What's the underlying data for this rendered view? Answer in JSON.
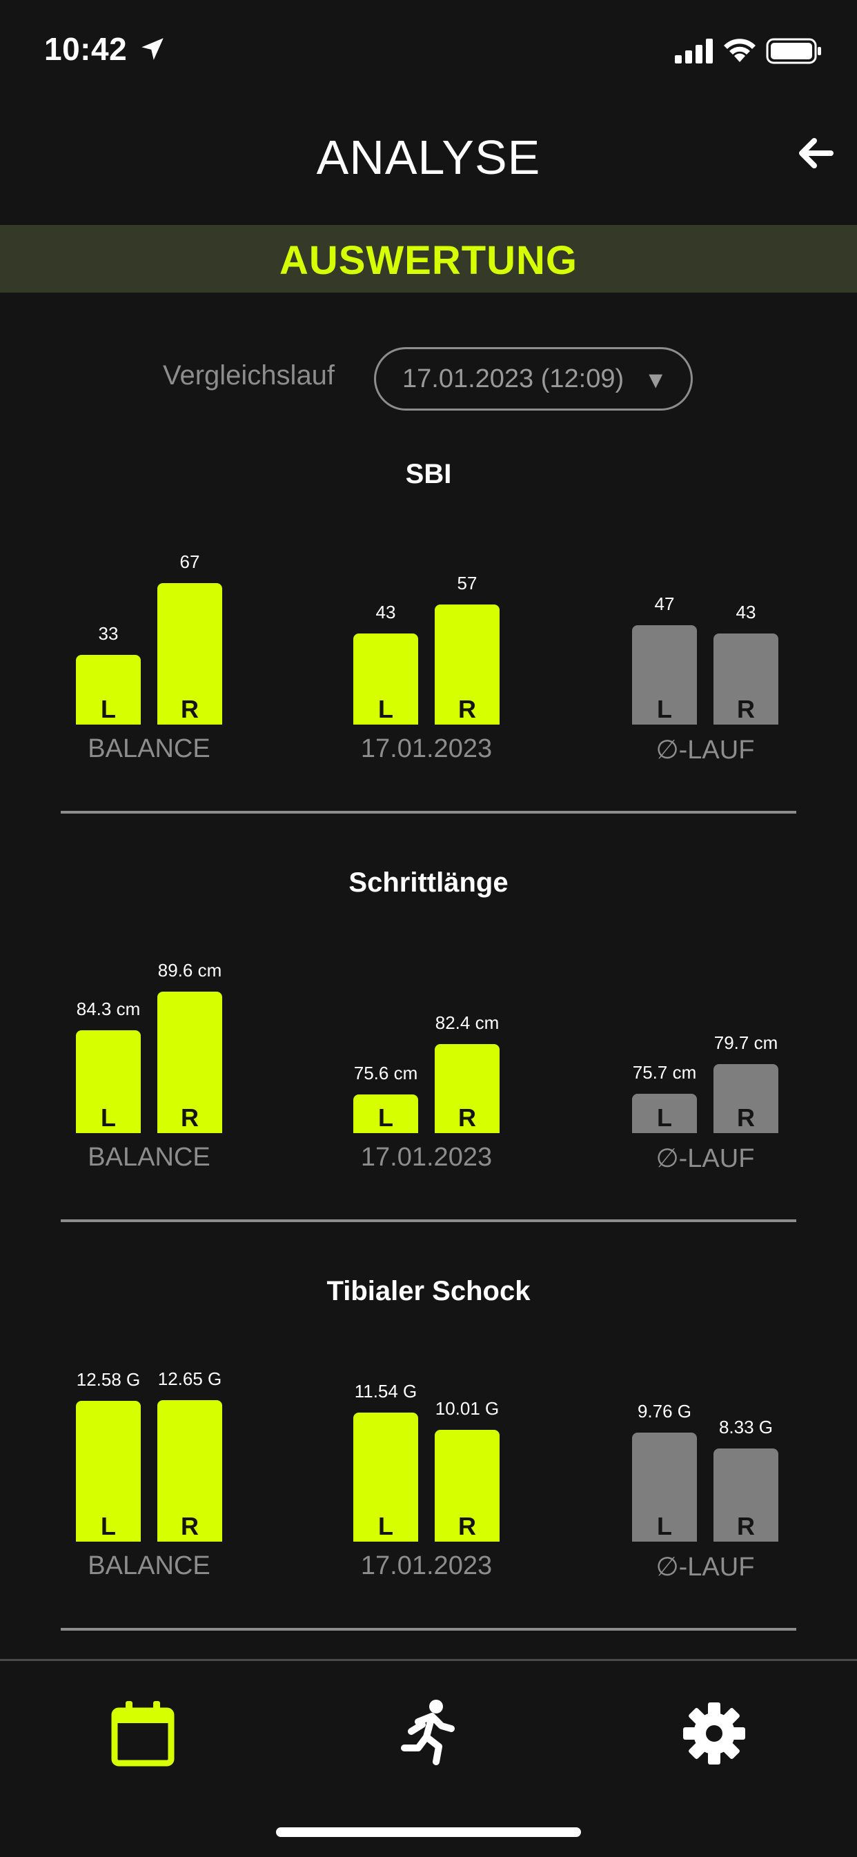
{
  "status_bar": {
    "time": "10:42",
    "icons": [
      "location-arrow-icon",
      "signal-icon",
      "wifi-icon",
      "battery-icon"
    ]
  },
  "header": {
    "title": "ANALYSE",
    "back_icon": "arrow-left-icon"
  },
  "banner": {
    "title": "AUSWERTUNG"
  },
  "compare": {
    "label": "Vergleichslauf",
    "selected": "17.01.2023 (12:09)",
    "caret": "▼"
  },
  "colors": {
    "accent": "#d6ff00",
    "muted_bar": "#7e7e7e",
    "background": "#141414",
    "banner_bg": "#353a28",
    "caption": "#8d8d8d"
  },
  "metrics": [
    {
      "title": "SBI",
      "groups": [
        {
          "caption": "BALANCE",
          "style": "active",
          "bars": [
            {
              "side": "L",
              "value": 33,
              "label": "33"
            },
            {
              "side": "R",
              "value": 67,
              "label": "67"
            }
          ]
        },
        {
          "caption": "17.01.2023",
          "style": "active",
          "bars": [
            {
              "side": "L",
              "value": 43,
              "label": "43"
            },
            {
              "side": "R",
              "value": 57,
              "label": "57"
            }
          ]
        },
        {
          "caption": "∅-LAUF",
          "style": "muted",
          "bars": [
            {
              "side": "L",
              "value": 47,
              "label": "47"
            },
            {
              "side": "R",
              "value": 43,
              "label": "43"
            }
          ]
        }
      ]
    },
    {
      "title": "Schrittlänge",
      "groups": [
        {
          "caption": "BALANCE",
          "style": "active",
          "bars": [
            {
              "side": "L",
              "value": 84.3,
              "label": "84.3 cm"
            },
            {
              "side": "R",
              "value": 89.6,
              "label": "89.6 cm"
            }
          ]
        },
        {
          "caption": "17.01.2023",
          "style": "active",
          "bars": [
            {
              "side": "L",
              "value": 75.6,
              "label": "75.6 cm"
            },
            {
              "side": "R",
              "value": 82.4,
              "label": "82.4 cm"
            }
          ]
        },
        {
          "caption": "∅-LAUF",
          "style": "muted",
          "bars": [
            {
              "side": "L",
              "value": 75.7,
              "label": "75.7 cm"
            },
            {
              "side": "R",
              "value": 79.7,
              "label": "79.7 cm"
            }
          ]
        }
      ]
    },
    {
      "title": "Tibialer Schock",
      "groups": [
        {
          "caption": "BALANCE",
          "style": "active",
          "bars": [
            {
              "side": "L",
              "value": 12.58,
              "label": "12.58 G"
            },
            {
              "side": "R",
              "value": 12.65,
              "label": "12.65 G"
            }
          ]
        },
        {
          "caption": "17.01.2023",
          "style": "active",
          "bars": [
            {
              "side": "L",
              "value": 11.54,
              "label": "11.54 G"
            },
            {
              "side": "R",
              "value": 10.01,
              "label": "10.01 G"
            }
          ]
        },
        {
          "caption": "∅-LAUF",
          "style": "muted",
          "bars": [
            {
              "side": "L",
              "value": 9.76,
              "label": "9.76 G"
            },
            {
              "side": "R",
              "value": 8.33,
              "label": "8.33 G"
            }
          ]
        }
      ]
    }
  ],
  "tab_bar": {
    "tabs": [
      {
        "icon": "calendar-icon",
        "active": true
      },
      {
        "icon": "runner-icon",
        "active": false
      },
      {
        "icon": "gear-icon",
        "active": false
      }
    ]
  }
}
